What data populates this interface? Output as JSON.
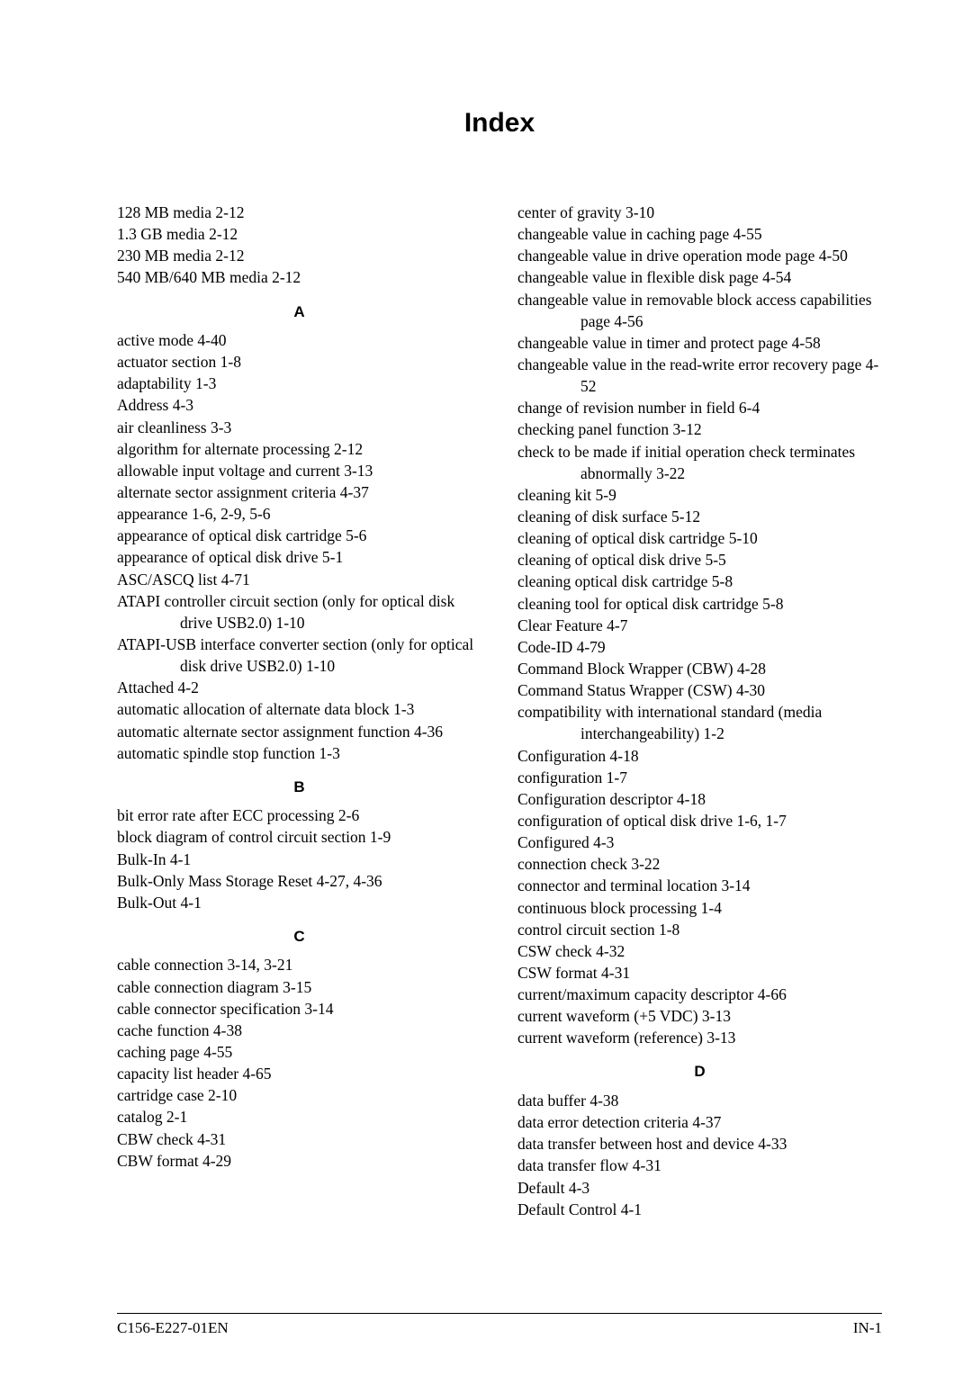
{
  "title": "Index",
  "left": {
    "preamble": [
      "128 MB media   2-12",
      "1.3 GB media   2-12",
      "230 MB media   2-12",
      "540 MB/640 MB media   2-12"
    ],
    "sections": [
      {
        "letter": "A",
        "entries": [
          "active mode   4-40",
          "actuator section   1-8",
          "adaptability   1-3",
          "Address   4-3",
          "air cleanliness   3-3",
          "algorithm for alternate processing   2-12",
          "allowable input voltage and current   3-13",
          "alternate sector assignment criteria   4-37",
          "appearance   1-6, 2-9, 5-6",
          "appearance of optical disk cartridge   5-6",
          "appearance of optical disk drive   5-1",
          "ASC/ASCQ list   4-71",
          "ATAPI controller circuit section (only for optical disk drive USB2.0)   1-10",
          "ATAPI-USB interface converter section (only for optical disk drive USB2.0)   1-10",
          "Attached   4-2",
          "automatic allocation of alternate data block   1-3",
          "automatic alternate sector assignment function   4-36",
          "automatic spindle stop function   1-3"
        ]
      },
      {
        "letter": "B",
        "entries": [
          "bit error rate after ECC processing   2-6",
          "block diagram of control circuit section   1-9",
          "Bulk-In   4-1",
          "Bulk-Only Mass Storage Reset   4-27, 4-36",
          "Bulk-Out   4-1"
        ]
      },
      {
        "letter": "C",
        "entries": [
          "cable connection   3-14, 3-21",
          "cable connection diagram   3-15",
          "cable connector specification   3-14",
          "cache function   4-38",
          "caching page   4-55",
          "capacity list header   4-65",
          "cartridge case   2-10",
          "catalog   2-1",
          "CBW check   4-31",
          "CBW format   4-29"
        ]
      }
    ]
  },
  "right": {
    "preamble": [
      "center of gravity   3-10",
      "changeable value in caching page   4-55",
      "changeable value in drive operation mode page   4-50",
      "changeable value in flexible disk page   4-54",
      "changeable value in removable block access capabilities page   4-56",
      "changeable value in timer and protect page   4-58",
      "changeable value in the read-write error recovery page   4-52",
      "change of revision number in field   6-4",
      "checking panel function   3-12",
      "check to be made if initial operation check terminates abnormally   3-22",
      "cleaning kit   5-9",
      "cleaning of disk surface   5-12",
      "cleaning of optical disk cartridge   5-10",
      "cleaning of optical disk drive   5-5",
      "cleaning optical disk cartridge   5-8",
      "cleaning tool for optical disk cartridge   5-8",
      "Clear Feature   4-7",
      "Code-ID   4-79",
      "Command Block Wrapper (CBW)   4-28",
      "Command Status Wrapper (CSW)   4-30",
      "compatibility with international standard (media interchangeability)   1-2",
      "Configuration   4-18",
      "configuration   1-7",
      "Configuration descriptor   4-18",
      "configuration of optical disk drive   1-6, 1-7",
      "Configured   4-3",
      "connection check   3-22",
      "connector and terminal location   3-14",
      "continuous block processing   1-4",
      "control circuit section   1-8",
      "CSW check   4-32",
      "CSW format   4-31",
      "current/maximum capacity descriptor   4-66",
      "current waveform (+5 VDC)   3-13",
      "current waveform (reference)   3-13"
    ],
    "sections": [
      {
        "letter": "D",
        "entries": [
          "data buffer   4-38",
          "data error detection criteria   4-37",
          "data transfer between host and device   4-33",
          "data transfer flow   4-31",
          "Default   4-3",
          "Default Control   4-1"
        ]
      }
    ]
  },
  "footer": {
    "left": "C156-E227-01EN",
    "right": "IN-1"
  }
}
